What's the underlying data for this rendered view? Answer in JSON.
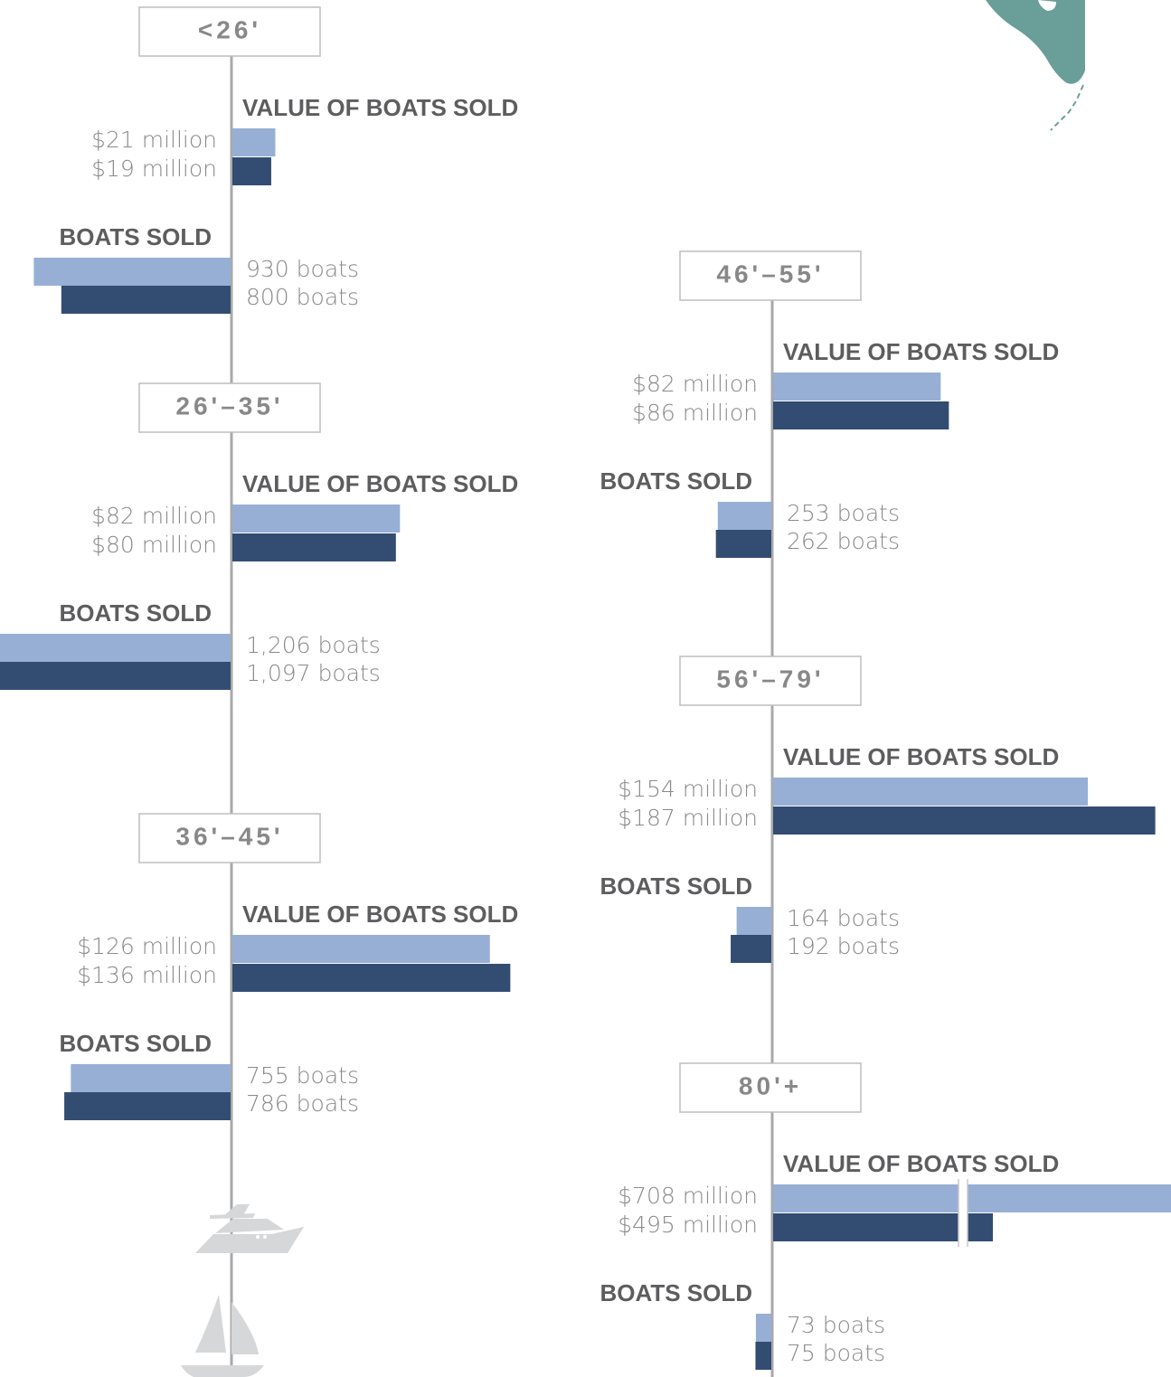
{
  "chart_data": [
    {
      "type": "bar",
      "category": "<26'",
      "value_label": "VALUE OF BOATS SOLD",
      "count_label": "BOATS SOLD",
      "value_unit": "million USD",
      "value_series": [
        {
          "values": [
            21,
            19
          ],
          "labels": [
            "$21 million",
            "$19 million"
          ]
        }
      ],
      "count_series": [
        {
          "values": [
            930,
            800
          ],
          "labels": [
            "930 boats",
            "800 boats"
          ]
        }
      ]
    },
    {
      "type": "bar",
      "category": "26'–35'",
      "value_label": "VALUE OF BOATS SOLD",
      "count_label": "BOATS SOLD",
      "value_unit": "million USD",
      "value_series": [
        {
          "values": [
            82,
            80
          ],
          "labels": [
            "$82 million",
            "$80 million"
          ]
        }
      ],
      "count_series": [
        {
          "values": [
            1206,
            1097
          ],
          "labels": [
            "1,206 boats",
            "1,097 boats"
          ]
        }
      ]
    },
    {
      "type": "bar",
      "category": "36'–45'",
      "value_label": "VALUE OF BOATS SOLD",
      "count_label": "BOATS SOLD",
      "value_unit": "million USD",
      "value_series": [
        {
          "values": [
            126,
            136
          ],
          "labels": [
            "$126 million",
            "$136 million"
          ]
        }
      ],
      "count_series": [
        {
          "values": [
            755,
            786
          ],
          "labels": [
            "755 boats",
            "786 boats"
          ]
        }
      ]
    },
    {
      "type": "bar",
      "category": "46'–55'",
      "value_label": "VALUE OF BOATS SOLD",
      "count_label": "BOATS SOLD",
      "value_unit": "million USD",
      "value_series": [
        {
          "values": [
            82,
            86
          ],
          "labels": [
            "$82 million",
            "$86 million"
          ]
        }
      ],
      "count_series": [
        {
          "values": [
            253,
            262
          ],
          "labels": [
            "253 boats",
            "262 boats"
          ]
        }
      ]
    },
    {
      "type": "bar",
      "category": "56'–79'",
      "value_label": "VALUE OF BOATS SOLD",
      "count_label": "BOATS SOLD",
      "value_unit": "million USD",
      "value_series": [
        {
          "values": [
            154,
            187
          ],
          "labels": [
            "$154 million",
            "$187 million"
          ]
        }
      ],
      "count_series": [
        {
          "values": [
            164,
            192
          ],
          "labels": [
            "164 boats",
            "192 boats"
          ]
        }
      ]
    },
    {
      "type": "bar",
      "category": "80'+",
      "value_label": "VALUE OF BOATS SOLD",
      "count_label": "BOATS SOLD",
      "value_unit": "million USD",
      "value_axis_break": true,
      "value_series": [
        {
          "values": [
            708,
            495
          ],
          "labels": [
            "$708 million",
            "$495 million"
          ]
        }
      ],
      "count_series": [
        {
          "values": [
            73,
            75
          ],
          "labels": [
            "73 boats",
            "75 boats"
          ]
        }
      ]
    }
  ],
  "colors": {
    "first_bar": "#97afd4",
    "second_bar": "#334d72",
    "axis": "#a9a9ab",
    "heading": "#5d5d5f",
    "label": "#8a8a8c",
    "florida_map": "#6a9e98",
    "boat_icons": "#d6d7d9"
  },
  "icons": [
    "florida-map-icon",
    "yacht-icon",
    "sailboat-icon"
  ]
}
